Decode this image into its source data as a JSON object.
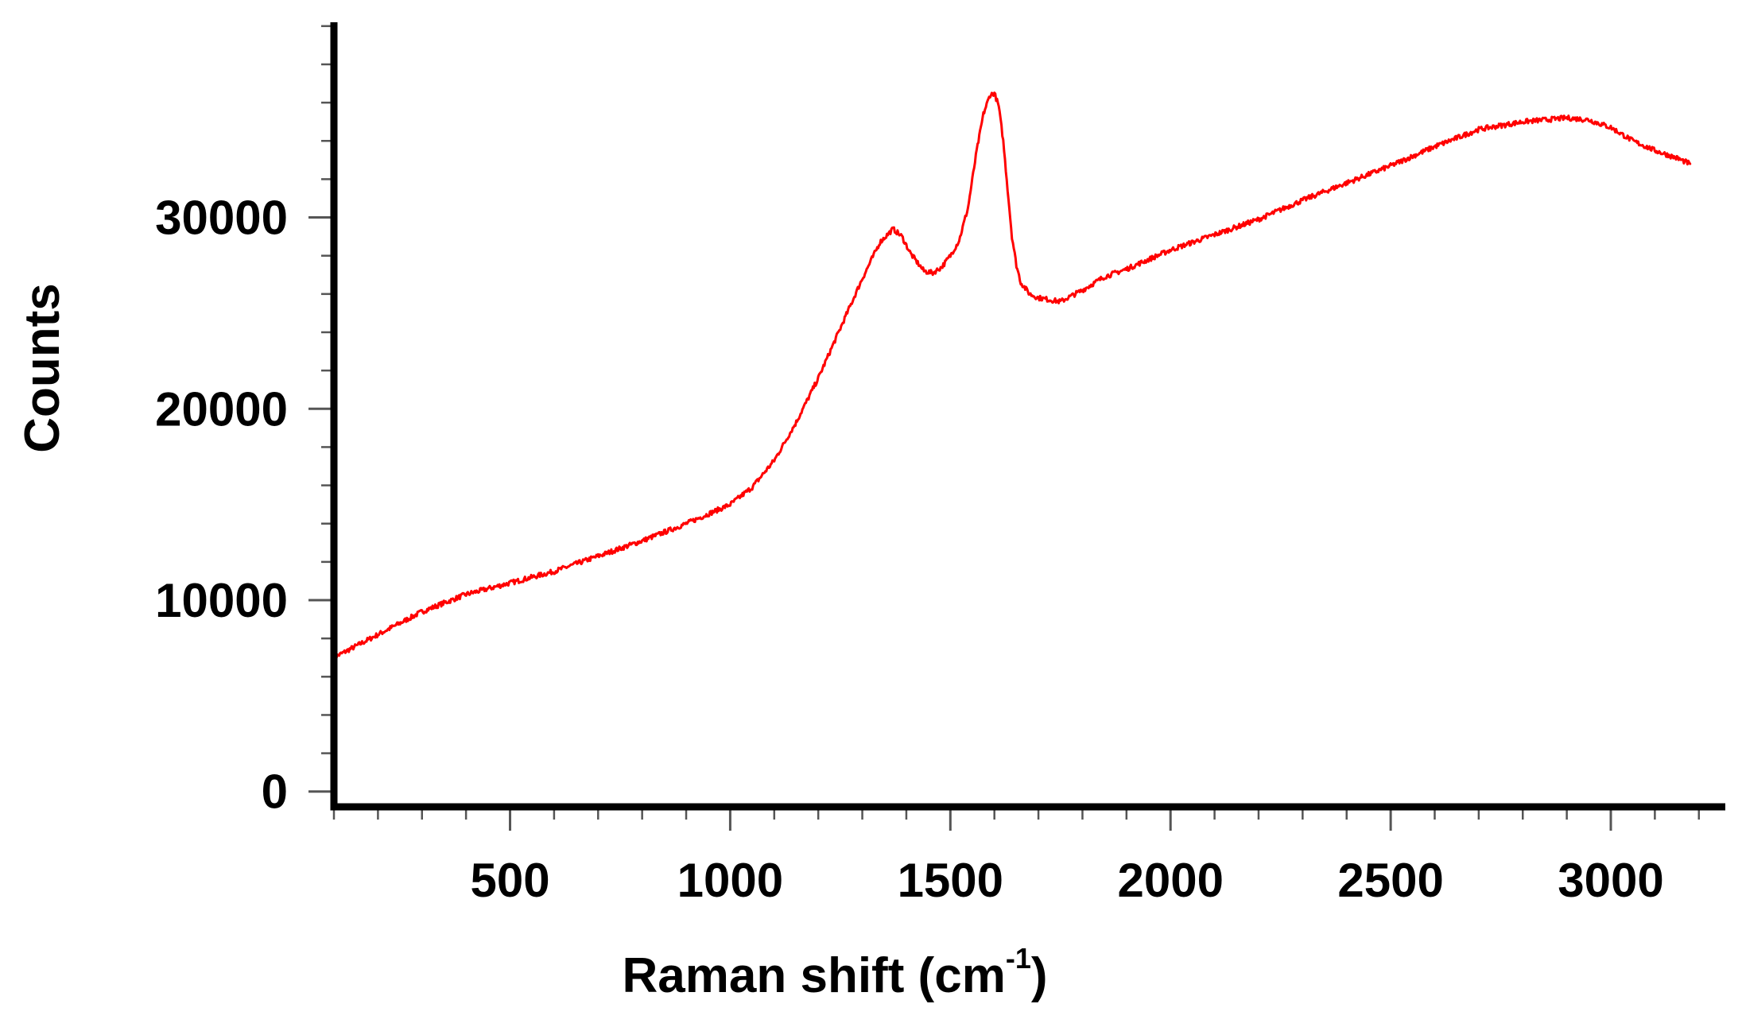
{
  "chart_data": {
    "type": "line",
    "title": "",
    "xlabel": "Raman shift (cm",
    "xlabel_superscript": "-1",
    "xlabel_close": ")",
    "ylabel": "Counts",
    "xlim": [
      100,
      3260
    ],
    "ylim": [
      -800,
      40200
    ],
    "x_ticks": [
      500,
      1000,
      1500,
      2000,
      2500,
      3000
    ],
    "x_tick_labels": [
      "500",
      "1000",
      "1500",
      "2000",
      "2500",
      "3000"
    ],
    "x_minor_step": 100,
    "y_ticks": [
      0,
      10000,
      20000,
      30000
    ],
    "y_tick_labels": [
      "0",
      "10000",
      "20000",
      "30000"
    ],
    "y_minor_step": 2000,
    "grid": false,
    "line_color": "#ff0000",
    "series": [
      {
        "x": [
          100,
          200,
          300,
          400,
          500,
          600,
          700,
          800,
          900,
          1000,
          1050,
          1100,
          1150,
          1200,
          1250,
          1300,
          1340,
          1370,
          1390,
          1410,
          1440,
          1460,
          1480,
          1500,
          1520,
          1540,
          1560,
          1575,
          1590,
          1600,
          1610,
          1620,
          1630,
          1640,
          1650,
          1660,
          1680,
          1700,
          1750,
          1800,
          1850,
          1900,
          2000,
          2100,
          2200,
          2300,
          2400,
          2500,
          2600,
          2700,
          2800,
          2900,
          2950,
          3000,
          3050,
          3100,
          3150,
          3180
        ],
        "y": [
          7000,
          8200,
          9400,
          10300,
          10900,
          11500,
          12300,
          13100,
          14000,
          15000,
          15900,
          17300,
          19300,
          21600,
          24200,
          26800,
          28700,
          29400,
          29000,
          28100,
          27200,
          27100,
          27400,
          28000,
          28800,
          30500,
          33500,
          35400,
          36400,
          36500,
          35800,
          34000,
          31500,
          29000,
          27500,
          26600,
          26000,
          25800,
          25600,
          26200,
          26900,
          27300,
          28300,
          29100,
          29900,
          30900,
          31800,
          32700,
          33700,
          34600,
          35000,
          35200,
          35100,
          34700,
          34000,
          33500,
          33100,
          32800
        ]
      }
    ]
  }
}
